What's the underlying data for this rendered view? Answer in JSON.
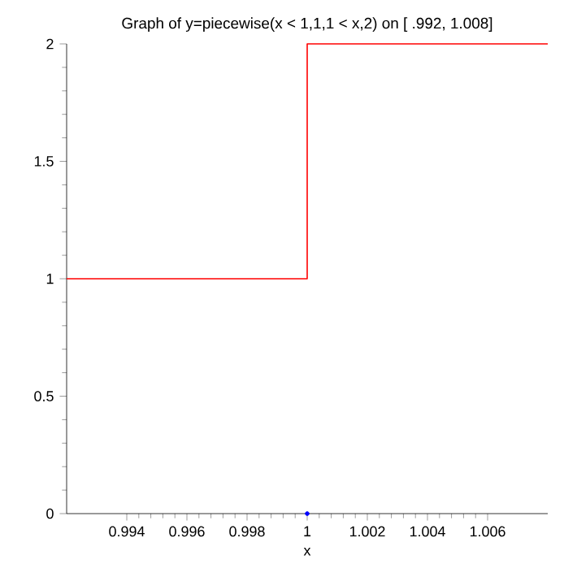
{
  "chart_data": {
    "type": "line",
    "title": "Graph of y=piecewise(x < 1,1,1 < x,2) on [ .992, 1.008]",
    "xlabel": "x",
    "series": [
      {
        "color": "#ff0000",
        "x": [
          0.992,
          1,
          1,
          1.008
        ],
        "values": [
          1,
          1,
          2,
          2
        ]
      },
      {
        "type": "scatter",
        "color": "#0000ff",
        "x": [
          1
        ],
        "values": [
          0
        ]
      }
    ],
    "xlim": [
      0.992,
      1.008
    ],
    "ylim": [
      0,
      2
    ],
    "xticks": [
      0.994,
      0.996,
      0.998,
      1,
      1.002,
      1.004,
      1.006
    ],
    "yticks": [
      0,
      0.5,
      1,
      1.5,
      2
    ],
    "grid": false
  }
}
